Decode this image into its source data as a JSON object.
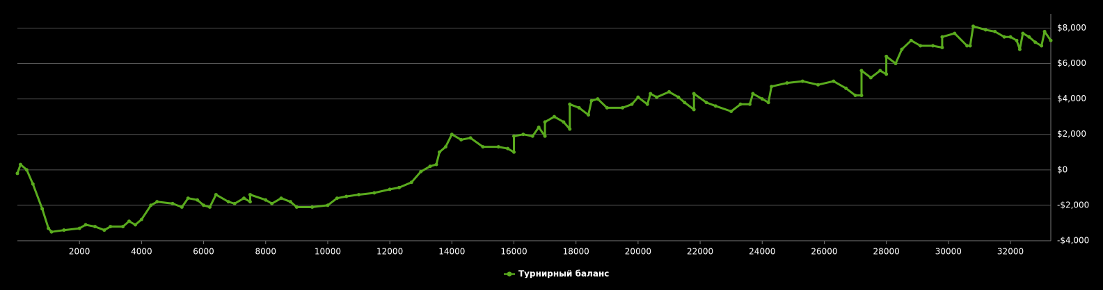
{
  "chart_data": {
    "type": "line",
    "x": [
      0,
      100,
      300,
      500,
      800,
      1000,
      1100,
      1500,
      2000,
      2200,
      2500,
      2800,
      3000,
      3400,
      3600,
      3800,
      4000,
      4300,
      4500,
      5000,
      5300,
      5500,
      5800,
      6000,
      6200,
      6400,
      6800,
      7000,
      7300,
      7500,
      7500,
      8000,
      8200,
      8500,
      8800,
      9000,
      9500,
      10000,
      10300,
      10600,
      11000,
      11500,
      12000,
      12300,
      12700,
      13000,
      13300,
      13500,
      13600,
      13800,
      14000,
      14300,
      14600,
      15000,
      15500,
      15800,
      16000,
      16000,
      16300,
      16600,
      16800,
      17000,
      17000,
      17300,
      17600,
      17800,
      17800,
      18100,
      18400,
      18500,
      18700,
      19000,
      19500,
      19800,
      20000,
      20300,
      20400,
      20600,
      21000,
      21300,
      21500,
      21800,
      21800,
      22200,
      22500,
      23000,
      23300,
      23600,
      23700,
      24000,
      24200,
      24300,
      24800,
      25300,
      25800,
      26300,
      26700,
      27000,
      27200,
      27200,
      27500,
      27800,
      28000,
      28000,
      28300,
      28500,
      28800,
      29100,
      29500,
      29800,
      29800,
      30200,
      30600,
      30700,
      30800,
      31200,
      31500,
      31800,
      32000,
      32200,
      32300,
      32400,
      32600,
      32800,
      33000,
      33100,
      33300
    ],
    "series": [
      {
        "name": "Турнирный баланс",
        "color": "#5aab1e",
        "values": [
          -200,
          300,
          0,
          -800,
          -2200,
          -3300,
          -3500,
          -3400,
          -3300,
          -3100,
          -3200,
          -3400,
          -3200,
          -3200,
          -2900,
          -3100,
          -2800,
          -2000,
          -1800,
          -1900,
          -2100,
          -1600,
          -1700,
          -2000,
          -2100,
          -1400,
          -1800,
          -1900,
          -1600,
          -1800,
          -1400,
          -1700,
          -1900,
          -1600,
          -1800,
          -2100,
          -2100,
          -2000,
          -1600,
          -1500,
          -1400,
          -1300,
          -1100,
          -1000,
          -700,
          -100,
          200,
          300,
          1000,
          1300,
          2000,
          1700,
          1800,
          1300,
          1300,
          1200,
          1000,
          1900,
          2000,
          1900,
          2400,
          1900,
          2700,
          3000,
          2700,
          2300,
          3700,
          3500,
          3100,
          3900,
          4000,
          3500,
          3500,
          3700,
          4100,
          3700,
          4300,
          4100,
          4400,
          4100,
          3800,
          3400,
          4300,
          3800,
          3600,
          3300,
          3700,
          3700,
          4300,
          4000,
          3800,
          4700,
          4900,
          5000,
          4800,
          5000,
          4600,
          4200,
          4200,
          5600,
          5200,
          5600,
          5400,
          6400,
          6000,
          6800,
          7300,
          7000,
          7000,
          6900,
          7500,
          7700,
          7000,
          7000,
          8100,
          7900,
          7800,
          7500,
          7500,
          7300,
          6800,
          7700,
          7500,
          7200,
          7000,
          7800,
          7300
        ]
      }
    ],
    "xlim": [
      0,
      33300
    ],
    "xticks": [
      2000,
      4000,
      6000,
      8000,
      10000,
      12000,
      14000,
      16000,
      18000,
      20000,
      22000,
      24000,
      26000,
      28000,
      30000,
      32000
    ],
    "ylim": [
      -4000,
      8800
    ],
    "yticks": [
      {
        "value": -4000,
        "label": "-$4,000"
      },
      {
        "value": -2000,
        "label": "-$2,000"
      },
      {
        "value": 0,
        "label": "$0"
      },
      {
        "value": 2000,
        "label": "$2,000"
      },
      {
        "value": 4000,
        "label": "$4,000"
      },
      {
        "value": 6000,
        "label": "$6,000"
      },
      {
        "value": 8000,
        "label": "$8,000"
      }
    ],
    "grid": true,
    "legend": "bottom"
  }
}
